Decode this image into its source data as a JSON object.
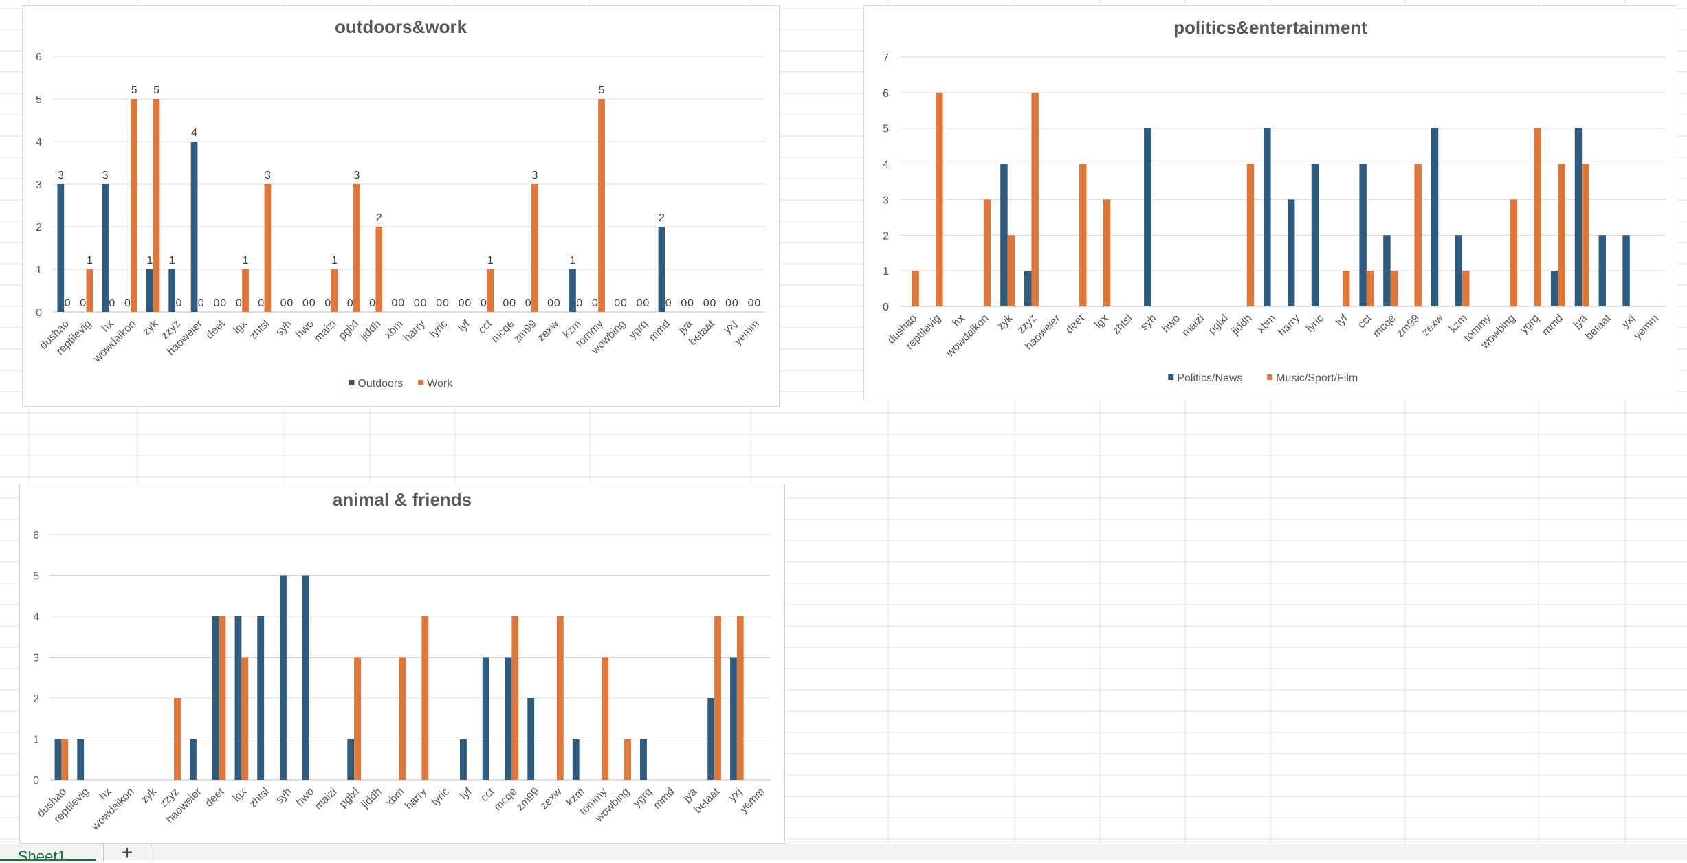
{
  "theme": {
    "blue": "#2e5b7e",
    "orange": "#e0773a",
    "grid": "#d9d9d9",
    "sheet_grid": "#e1e1e1"
  },
  "sheet": {
    "tab_label": "Sheet1",
    "add_label": "+"
  },
  "chart_data": [
    {
      "type": "bar",
      "title": "outdoors&work",
      "categories": [
        "dushao",
        "reptilevig",
        "hx",
        "wowdaikon",
        "zyk",
        "zzyz",
        "haoweier",
        "deet",
        "lgx",
        "zhtsl",
        "syh",
        "hwo",
        "maizi",
        "pglxl",
        "jiddh",
        "xbm",
        "harry",
        "lyric",
        "lyf",
        "cct",
        "mcqe",
        "zm99",
        "zexw",
        "kzm",
        "tommy",
        "wowbing",
        "ygrq",
        "mmd",
        "jya",
        "betaat",
        "yxj",
        "yemm"
      ],
      "series": [
        {
          "name": "Outdoors",
          "color": "#2e5b7e",
          "values": [
            3,
            0,
            3,
            0,
            1,
            1,
            4,
            0,
            0,
            0,
            0,
            0,
            0,
            0,
            0,
            0,
            0,
            0,
            0,
            0,
            0,
            0,
            0,
            1,
            0,
            0,
            0,
            2,
            0,
            0,
            0,
            0
          ]
        },
        {
          "name": "Work",
          "color": "#e0773a",
          "values": [
            0,
            1,
            0,
            5,
            5,
            0,
            0,
            0,
            1,
            3,
            0,
            0,
            1,
            3,
            2,
            0,
            0,
            0,
            0,
            1,
            0,
            3,
            0,
            0,
            5,
            0,
            0,
            0,
            0,
            0,
            0,
            0
          ]
        }
      ],
      "ylim": [
        0,
        6
      ],
      "yticks": [
        0,
        1,
        2,
        3,
        4,
        5,
        6
      ],
      "data_labels": true,
      "legend": "bottom",
      "grid": true
    },
    {
      "type": "bar",
      "title": "politics&entertainment",
      "categories": [
        "dushao",
        "reptilevig",
        "hx",
        "wowdaikon",
        "zyk",
        "zzyz",
        "haoweier",
        "deet",
        "lgx",
        "zhtsl",
        "syh",
        "hwo",
        "maizi",
        "pglxl",
        "jiddh",
        "xbm",
        "harry",
        "lyric",
        "lyf",
        "cct",
        "mcqe",
        "zm99",
        "zexw",
        "kzm",
        "tommy",
        "wowbing",
        "ygrq",
        "mmd",
        "jya",
        "betaat",
        "yxj",
        "yemm"
      ],
      "series": [
        {
          "name": "Politics/News",
          "color": "#2e5b7e",
          "values": [
            0,
            0,
            0,
            0,
            4,
            1,
            0,
            0,
            0,
            0,
            5,
            0,
            0,
            0,
            0,
            5,
            3,
            4,
            0,
            4,
            2,
            0,
            5,
            2,
            0,
            0,
            0,
            1,
            5,
            2,
            2,
            0
          ]
        },
        {
          "name": "Music/Sport/Film",
          "color": "#e0773a",
          "values": [
            1,
            6,
            0,
            3,
            2,
            6,
            0,
            4,
            3,
            0,
            0,
            0,
            0,
            0,
            4,
            0,
            0,
            0,
            1,
            1,
            1,
            4,
            0,
            1,
            0,
            3,
            5,
            4,
            4,
            0,
            0,
            0
          ]
        }
      ],
      "ylim": [
        0,
        7
      ],
      "yticks": [
        0,
        1,
        2,
        3,
        4,
        5,
        6,
        7
      ],
      "data_labels": false,
      "legend": "bottom",
      "grid": true
    },
    {
      "type": "bar",
      "title": "animal & friends",
      "categories": [
        "dushao",
        "reptilevig",
        "hx",
        "wowdaikon",
        "zyk",
        "zzyz",
        "haoweier",
        "deet",
        "lgx",
        "zhtsl",
        "syh",
        "hwo",
        "maizi",
        "pglxl",
        "jiddh",
        "xbm",
        "harry",
        "lyric",
        "lyf",
        "cct",
        "mcqe",
        "zm99",
        "zexw",
        "kzm",
        "tommy",
        "wowbing",
        "ygrq",
        "mmd",
        "jya",
        "betaat",
        "yxj",
        "yemm"
      ],
      "series": [
        {
          "color": "#2e5b7e",
          "values": [
            1,
            1,
            0,
            0,
            0,
            0,
            1,
            4,
            4,
            4,
            5,
            5,
            0,
            1,
            0,
            0,
            0,
            0,
            1,
            3,
            3,
            2,
            0,
            1,
            0,
            0,
            1,
            0,
            0,
            2,
            3,
            0
          ]
        },
        {
          "color": "#e0773a",
          "values": [
            1,
            0,
            0,
            0,
            0,
            2,
            0,
            4,
            3,
            0,
            0,
            0,
            0,
            3,
            0,
            3,
            4,
            0,
            0,
            0,
            4,
            0,
            4,
            0,
            3,
            1,
            0,
            0,
            0,
            4,
            4,
            0
          ]
        }
      ],
      "ylim": [
        0,
        6
      ],
      "yticks": [
        0,
        1,
        2,
        3,
        4,
        5,
        6
      ],
      "data_labels": false,
      "legend": "none",
      "grid": true
    }
  ]
}
